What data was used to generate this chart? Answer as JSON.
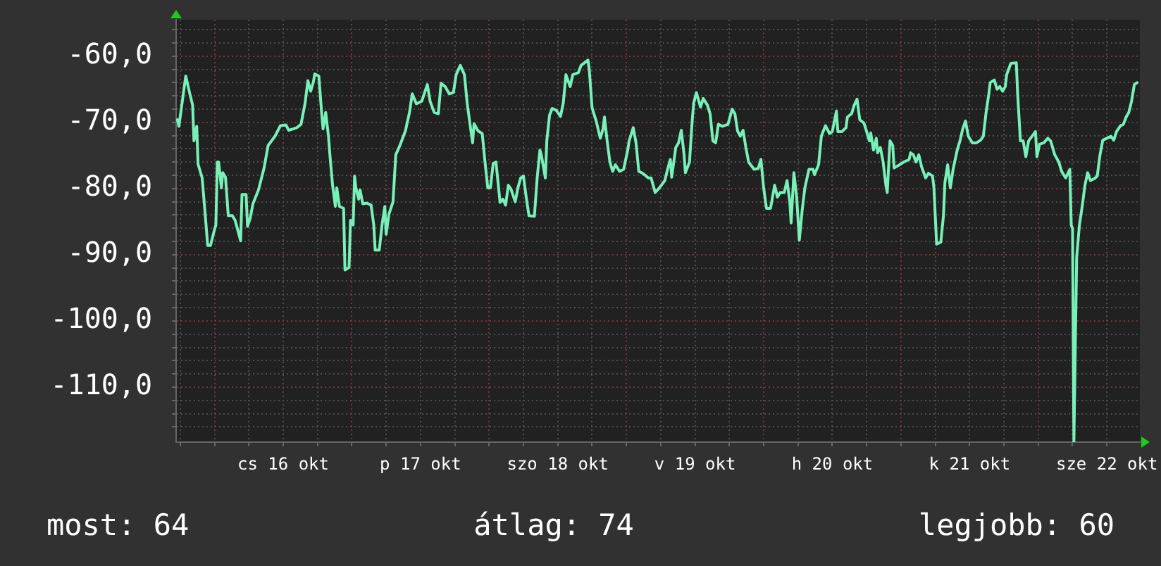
{
  "chart_data": {
    "type": "line",
    "color": "#78f0b8",
    "marker": "none",
    "grid": true,
    "xlim": [
      "--10-15T17:17",
      "--10-22T17:46"
    ],
    "xticks": [
      {
        "value": "--10-15T18:00",
        "label": null
      },
      {
        "value": "--10-16T00:00",
        "label": null
      },
      {
        "value": "--10-16T06:00",
        "label": null
      },
      {
        "value": "--10-16T12:00",
        "label": "cs 16 okt"
      },
      {
        "value": "--10-16T18:00",
        "label": null
      },
      {
        "value": "--10-17T00:00",
        "label": null
      },
      {
        "value": "--10-17T06:00",
        "label": null
      },
      {
        "value": "--10-17T12:00",
        "label": "p 17 okt"
      },
      {
        "value": "--10-17T18:00",
        "label": null
      },
      {
        "value": "--10-18T00:00",
        "label": null
      },
      {
        "value": "--10-18T06:00",
        "label": null
      },
      {
        "value": "--10-18T12:00",
        "label": "szo 18 okt"
      },
      {
        "value": "--10-18T18:00",
        "label": null
      },
      {
        "value": "--10-19T00:00",
        "label": null
      },
      {
        "value": "--10-19T06:00",
        "label": null
      },
      {
        "value": "--10-19T12:00",
        "label": "v 19 okt"
      },
      {
        "value": "--10-19T18:00",
        "label": null
      },
      {
        "value": "--10-20T00:00",
        "label": null
      },
      {
        "value": "--10-20T06:00",
        "label": null
      },
      {
        "value": "--10-20T12:00",
        "label": "h 20 okt"
      },
      {
        "value": "--10-20T18:00",
        "label": null
      },
      {
        "value": "--10-21T00:00",
        "label": null
      },
      {
        "value": "--10-21T06:00",
        "label": null
      },
      {
        "value": "--10-21T12:00",
        "label": "k 21 okt"
      },
      {
        "value": "--10-21T18:00",
        "label": null
      },
      {
        "value": "--10-22T00:00",
        "label": null
      },
      {
        "value": "--10-22T06:00",
        "label": null
      },
      {
        "value": "--10-22T12:00",
        "label": "sze 22 okt"
      }
    ],
    "ylim": [
      -118.3,
      -54.5
    ],
    "yticks": [
      {
        "value": -116,
        "label": null
      },
      {
        "value": -114,
        "label": null
      },
      {
        "value": -112,
        "label": null
      },
      {
        "value": -110,
        "label": "-110,0"
      },
      {
        "value": -108,
        "label": null
      },
      {
        "value": -106,
        "label": null
      },
      {
        "value": -104,
        "label": null
      },
      {
        "value": -102,
        "label": null
      },
      {
        "value": -100,
        "label": "-100,0"
      },
      {
        "value": -98,
        "label": null
      },
      {
        "value": -96,
        "label": null
      },
      {
        "value": -94,
        "label": null
      },
      {
        "value": -92,
        "label": null
      },
      {
        "value": -90,
        "label": "-90,0"
      },
      {
        "value": -88,
        "label": null
      },
      {
        "value": -86,
        "label": null
      },
      {
        "value": -84,
        "label": null
      },
      {
        "value": -82,
        "label": null
      },
      {
        "value": -80,
        "label": "-80,0"
      },
      {
        "value": -78,
        "label": null
      },
      {
        "value": -76,
        "label": null
      },
      {
        "value": -74,
        "label": null
      },
      {
        "value": -72,
        "label": null
      },
      {
        "value": -70,
        "label": "-70,0"
      },
      {
        "value": -68,
        "label": null
      },
      {
        "value": -66,
        "label": null
      },
      {
        "value": -64,
        "label": null
      },
      {
        "value": -62,
        "label": null
      },
      {
        "value": -60,
        "label": "-60,0"
      },
      {
        "value": -58,
        "label": null
      },
      {
        "value": -56,
        "label": null
      }
    ],
    "annotations": [
      "most: 64",
      "átlag: 74",
      "legjobb: 60"
    ],
    "x": [
      "--10-15T17:31",
      "--10-15T17:46",
      "--10-15T18:58",
      "--10-15T19:41",
      "--10-15T20:10",
      "--10-15T20:24",
      "--10-15T20:53",
      "--10-15T21:07",
      "--10-15T21:50",
      "--10-15T22:19",
      "--10-15T22:48",
      "--10-15T23:17",
      "--10-16T00:00",
      "--10-16T00:14",
      "--10-16T00:29",
      "--10-16T00:43",
      "--10-16T01:12",
      "--10-16T01:26",
      "--10-16T01:55",
      "--10-16T02:24",
      "--10-16T03:07",
      "--10-16T03:36",
      "--10-16T04:34",
      "--10-16T04:48",
      "--10-16T05:31",
      "--10-16T05:46",
      "--10-16T06:14",
      "--10-16T06:43",
      "--10-16T07:41",
      "--10-16T08:38",
      "--10-16T09:22",
      "--10-16T10:34",
      "--10-16T11:31",
      "--10-16T12:29",
      "--10-16T12:58",
      "--10-16T14:24",
      "--10-16T15:07",
      "--10-16T15:50",
      "--10-16T16:19",
      "--10-16T16:48",
      "--10-16T17:17",
      "--10-16T17:31",
      "--10-16T18:14",
      "--10-16T18:43",
      "--10-16T18:58",
      "--10-16T19:26",
      "--10-16T19:55",
      "--10-16T20:10",
      "--10-16T20:38",
      "--10-16T21:07",
      "--10-16T21:22",
      "--10-16T21:50",
      "--10-16T22:34",
      "--10-16T22:48",
      "--10-16T23:31",
      "--10-16T23:46",
      "--10-17T00:14",
      "--10-17T00:29",
      "--10-17T00:43",
      "--10-17T01:12",
      "--10-17T01:26",
      "--10-17T01:55",
      "--10-17T02:38",
      "--10-17T03:22",
      "--10-17T03:50",
      "--10-17T04:05",
      "--10-17T04:48",
      "--10-17T05:17",
      "--10-17T05:46",
      "--10-17T06:00",
      "--10-17T06:29",
      "--10-17T07:12",
      "--10-17T07:41",
      "--10-17T08:24",
      "--10-17T09:22",
      "--10-17T10:05",
      "--10-17T10:34",
      "--10-17T11:17",
      "--10-17T12:14",
      "--10-17T13:12",
      "--10-17T13:41",
      "--10-17T14:24",
      "--10-17T15:07",
      "--10-17T15:36",
      "--10-17T16:19",
      "--10-17T17:02",
      "--10-17T17:46",
      "--10-17T18:14",
      "--10-17T18:58",
      "--10-17T19:41",
      "--10-17T20:10",
      "--10-17T20:38",
      "--10-17T21:07",
      "--10-17T21:22",
      "--10-17T22:05",
      "--10-17T22:48",
      "--10-17T23:17",
      "--10-17T23:46",
      "--10-18T00:14",
      "--10-18T00:43",
      "--10-18T01:12",
      "--10-18T01:55",
      "--10-18T02:24",
      "--10-18T02:53",
      "--10-18T03:22",
      "--10-18T03:50",
      "--10-18T04:34",
      "--10-18T05:02",
      "--10-18T05:31",
      "--10-18T06:00",
      "--10-18T06:29",
      "--10-18T06:58",
      "--10-18T07:55",
      "--10-18T08:24",
      "--10-18T08:53",
      "--10-18T09:07",
      "--10-18T09:50",
      "--10-18T10:05",
      "--10-18T10:34",
      "--10-18T11:02",
      "--10-18T11:46",
      "--10-18T12:29",
      "--10-18T12:58",
      "--10-18T13:26",
      "--10-18T14:10",
      "--10-18T14:38",
      "--10-18T15:36",
      "--10-18T16:05",
      "--10-18T17:17",
      "--10-18T17:31",
      "--10-18T18:00",
      "--10-18T18:43",
      "--10-18T19:26",
      "--10-18T19:55",
      "--10-18T20:10",
      "--10-18T20:38",
      "--10-18T21:07",
      "--10-18T21:36",
      "--10-18T22:05",
      "--10-18T22:48",
      "--10-18T23:31",
      "--10-19T00:14",
      "--10-19T00:29",
      "--10-19T01:12",
      "--10-19T01:41",
      "--10-19T02:10",
      "--10-19T02:53",
      "--10-19T03:50",
      "--10-19T04:19",
      "--10-19T05:02",
      "--10-19T05:46",
      "--10-19T06:43",
      "--10-19T07:12",
      "--10-19T07:41",
      "--10-19T07:55",
      "--10-19T08:38",
      "--10-19T09:07",
      "--10-19T09:36",
      "--10-19T10:05",
      "--10-19T10:19",
      "--10-19T11:02",
      "--10-19T11:31",
      "--10-19T11:46",
      "--10-19T12:14",
      "--10-19T12:58",
      "--10-19T13:26",
      "--10-19T14:10",
      "--10-19T14:38",
      "--10-19T15:07",
      "--10-19T15:36",
      "--10-19T16:05",
      "--10-19T16:48",
      "--10-19T17:46",
      "--10-19T18:29",
      "--10-19T18:58",
      "--10-19T19:26",
      "--10-19T19:55",
      "--10-19T20:24",
      "--10-19T20:53",
      "--10-19T21:22",
      "--10-19T22:19",
      "--10-19T23:02",
      "--10-19T23:31",
      "--10-20T00:00",
      "--10-20T00:29",
      "--10-20T01:12",
      "--10-20T01:55",
      "--10-20T02:24",
      "--10-20T02:53",
      "--10-20T03:36",
      "--10-20T04:05",
      "--10-20T04:34",
      "--10-20T04:48",
      "--10-20T05:17",
      "--10-20T05:46",
      "--10-20T06:14",
      "--10-20T06:43",
      "--10-20T07:12",
      "--10-20T07:55",
      "--10-20T08:38",
      "--10-20T08:53",
      "--10-20T09:36",
      "--10-20T10:05",
      "--10-20T10:48",
      "--10-20T11:31",
      "--10-20T12:00",
      "--10-20T12:43",
      "--10-20T12:58",
      "--10-20T13:41",
      "--10-20T14:24",
      "--10-20T14:38",
      "--10-20T15:22",
      "--10-20T15:50",
      "--10-20T16:19",
      "--10-20T16:48",
      "--10-20T17:31",
      "--10-20T18:00",
      "--10-20T18:29",
      "--10-20T18:43",
      "--10-20T19:12",
      "--10-20T19:41",
      "--10-20T19:55",
      "--10-20T20:24",
      "--10-20T20:53",
      "--10-20T21:22",
      "--10-20T21:36",
      "--10-20T22:05",
      "--10-20T22:34",
      "--10-20T22:48",
      "--10-20T23:46",
      "--10-21T00:29",
      "--10-21T01:26",
      "--10-21T01:41",
      "--10-21T02:10",
      "--10-21T02:38",
      "--10-21T03:07",
      "--10-21T03:36",
      "--10-21T04:19",
      "--10-21T04:48",
      "--10-21T05:31",
      "--10-21T05:46",
      "--10-21T06:14",
      "--10-21T06:58",
      "--10-21T07:26",
      "--10-21T07:41",
      "--10-21T08:10",
      "--10-21T08:38",
      "--10-21T09:07",
      "--10-21T09:50",
      "--10-21T10:19",
      "--10-21T10:48",
      "--10-21T11:17",
      "--10-21T11:46",
      "--10-21T12:29",
      "--10-21T13:12",
      "--10-21T13:55",
      "--10-21T14:24",
      "--10-21T14:53",
      "--10-21T15:22",
      "--10-21T15:36",
      "--10-21T16:19",
      "--10-21T16:48",
      "--10-21T17:17",
      "--10-21T17:46",
      "--10-21T18:14",
      "--10-21T18:29",
      "--10-21T19:12",
      "--10-21T20:10",
      "--10-21T20:24",
      "--10-21T20:53",
      "--10-21T21:22",
      "--10-21T21:50",
      "--10-21T22:19",
      "--10-21T23:31",
      "--10-21T23:46",
      "--10-22T00:14",
      "--10-22T00:58",
      "--10-22T01:41",
      "--10-22T02:10",
      "--10-22T02:53",
      "--10-22T03:36",
      "--10-22T04:05",
      "--10-22T04:48",
      "--10-22T05:31",
      "--10-22T05:46",
      "--10-22T06:00",
      "--10-22T06:14",
      "--10-22T06:43",
      "--10-22T07:12",
      "--10-22T07:41",
      "--10-22T08:10",
      "--10-22T08:38",
      "--10-22T09:07",
      "--10-22T09:50",
      "--10-22T10:19",
      "--10-22T10:48",
      "--10-22T11:17",
      "--10-22T12:00",
      "--10-22T12:43",
      "--10-22T13:12",
      "--10-22T13:41",
      "--10-22T14:24",
      "--10-22T14:53",
      "--10-22T15:22",
      "--10-22T15:50",
      "--10-22T16:19",
      "--10-22T16:48",
      "--10-22T17:17"
    ],
    "values": [
      -69.6,
      -70.6,
      -63.0,
      -65.7,
      -67.4,
      -72.8,
      -70.6,
      -76.3,
      -78.4,
      -83.4,
      -88.6,
      -88.6,
      -86.2,
      -85.5,
      -76.0,
      -76.0,
      -79.9,
      -77.6,
      -78.3,
      -84.1,
      -84.1,
      -84.8,
      -87.9,
      -80.9,
      -80.9,
      -85.7,
      -84.5,
      -82.3,
      -80.2,
      -77.0,
      -73.5,
      -72.1,
      -70.5,
      -70.4,
      -71.2,
      -70.8,
      -70.3,
      -67.1,
      -63.7,
      -65.3,
      -63.9,
      -62.7,
      -63.0,
      -68.5,
      -71.0,
      -68.5,
      -72.1,
      -74.9,
      -79.5,
      -82.7,
      -79.9,
      -82.7,
      -83.0,
      -92.3,
      -91.9,
      -84.8,
      -85.5,
      -78.1,
      -79.9,
      -81.6,
      -80.2,
      -82.3,
      -82.2,
      -82.5,
      -85.5,
      -89.3,
      -89.3,
      -85.5,
      -82.7,
      -86.9,
      -83.9,
      -82.0,
      -74.9,
      -73.5,
      -71.3,
      -68.5,
      -65.7,
      -67.2,
      -66.8,
      -64.3,
      -66.8,
      -68.5,
      -68.7,
      -64.1,
      -64.6,
      -65.7,
      -65.5,
      -62.8,
      -61.4,
      -62.8,
      -67.1,
      -70.1,
      -73.1,
      -70.2,
      -71.3,
      -71.7,
      -76.0,
      -79.9,
      -79.9,
      -76.2,
      -76.0,
      -82.1,
      -81.6,
      -82.5,
      -79.5,
      -80.1,
      -82.0,
      -79.9,
      -78.4,
      -78.1,
      -81.3,
      -84.1,
      -84.2,
      -78.4,
      -74.2,
      -74.9,
      -78.4,
      -72.8,
      -68.9,
      -67.9,
      -68.2,
      -69.1,
      -67.1,
      -62.8,
      -64.6,
      -62.8,
      -62.5,
      -61.4,
      -60.6,
      -62.1,
      -67.8,
      -69.8,
      -72.4,
      -71.0,
      -69.2,
      -72.8,
      -76.0,
      -77.4,
      -76.4,
      -77.4,
      -77.1,
      -74.2,
      -72.8,
      -70.8,
      -73.1,
      -77.4,
      -77.7,
      -78.4,
      -78.4,
      -80.6,
      -79.9,
      -78.8,
      -77.1,
      -75.6,
      -78.3,
      -73.8,
      -73.1,
      -71.2,
      -74.9,
      -77.6,
      -76.0,
      -69.6,
      -67.1,
      -65.5,
      -67.7,
      -66.4,
      -67.4,
      -68.7,
      -72.8,
      -73.1,
      -70.3,
      -70.6,
      -70.3,
      -68.0,
      -68.7,
      -71.3,
      -72.1,
      -71.2,
      -73.8,
      -76.0,
      -77.1,
      -77.0,
      -75.6,
      -79.9,
      -83.0,
      -83.0,
      -79.5,
      -81.3,
      -80.6,
      -80.6,
      -78.8,
      -82.0,
      -85.2,
      -77.6,
      -81.3,
      -87.8,
      -83.4,
      -79.9,
      -77.1,
      -77.1,
      -77.9,
      -76.4,
      -72.1,
      -70.5,
      -71.7,
      -71.4,
      -68.3,
      -71.4,
      -71.4,
      -70.8,
      -69.2,
      -68.7,
      -67.4,
      -66.5,
      -69.6,
      -70.1,
      -71.4,
      -72.8,
      -71.6,
      -74.2,
      -72.4,
      -74.6,
      -73.8,
      -76.0,
      -79.5,
      -80.6,
      -72.8,
      -73.5,
      -76.9,
      -76.4,
      -76.0,
      -75.6,
      -74.6,
      -74.9,
      -76.0,
      -74.9,
      -76.7,
      -78.4,
      -77.7,
      -78.1,
      -79.9,
      -88.4,
      -88.1,
      -84.1,
      -79.1,
      -76.4,
      -79.9,
      -77.1,
      -74.2,
      -72.8,
      -71.0,
      -69.8,
      -72.1,
      -73.1,
      -73.1,
      -72.7,
      -72.1,
      -68.5,
      -65.7,
      -64.0,
      -63.6,
      -65.0,
      -64.6,
      -65.3,
      -64.6,
      -62.8,
      -61.1,
      -61.0,
      -65.7,
      -72.8,
      -72.8,
      -75.2,
      -72.8,
      -71.4,
      -75.2,
      -73.3,
      -73.1,
      -72.4,
      -72.8,
      -74.9,
      -76.0,
      -77.4,
      -78.4,
      -77.1,
      -85.5,
      -86.1,
      -118.3,
      -90.4,
      -85.5,
      -82.7,
      -79.5,
      -77.6,
      -78.8,
      -78.5,
      -78.1,
      -74.9,
      -72.7,
      -72.4,
      -72.1,
      -72.7,
      -71.4,
      -70.5,
      -70.3,
      -69.2,
      -68.5,
      -66.8,
      -64.3,
      -64.0
    ]
  }
}
